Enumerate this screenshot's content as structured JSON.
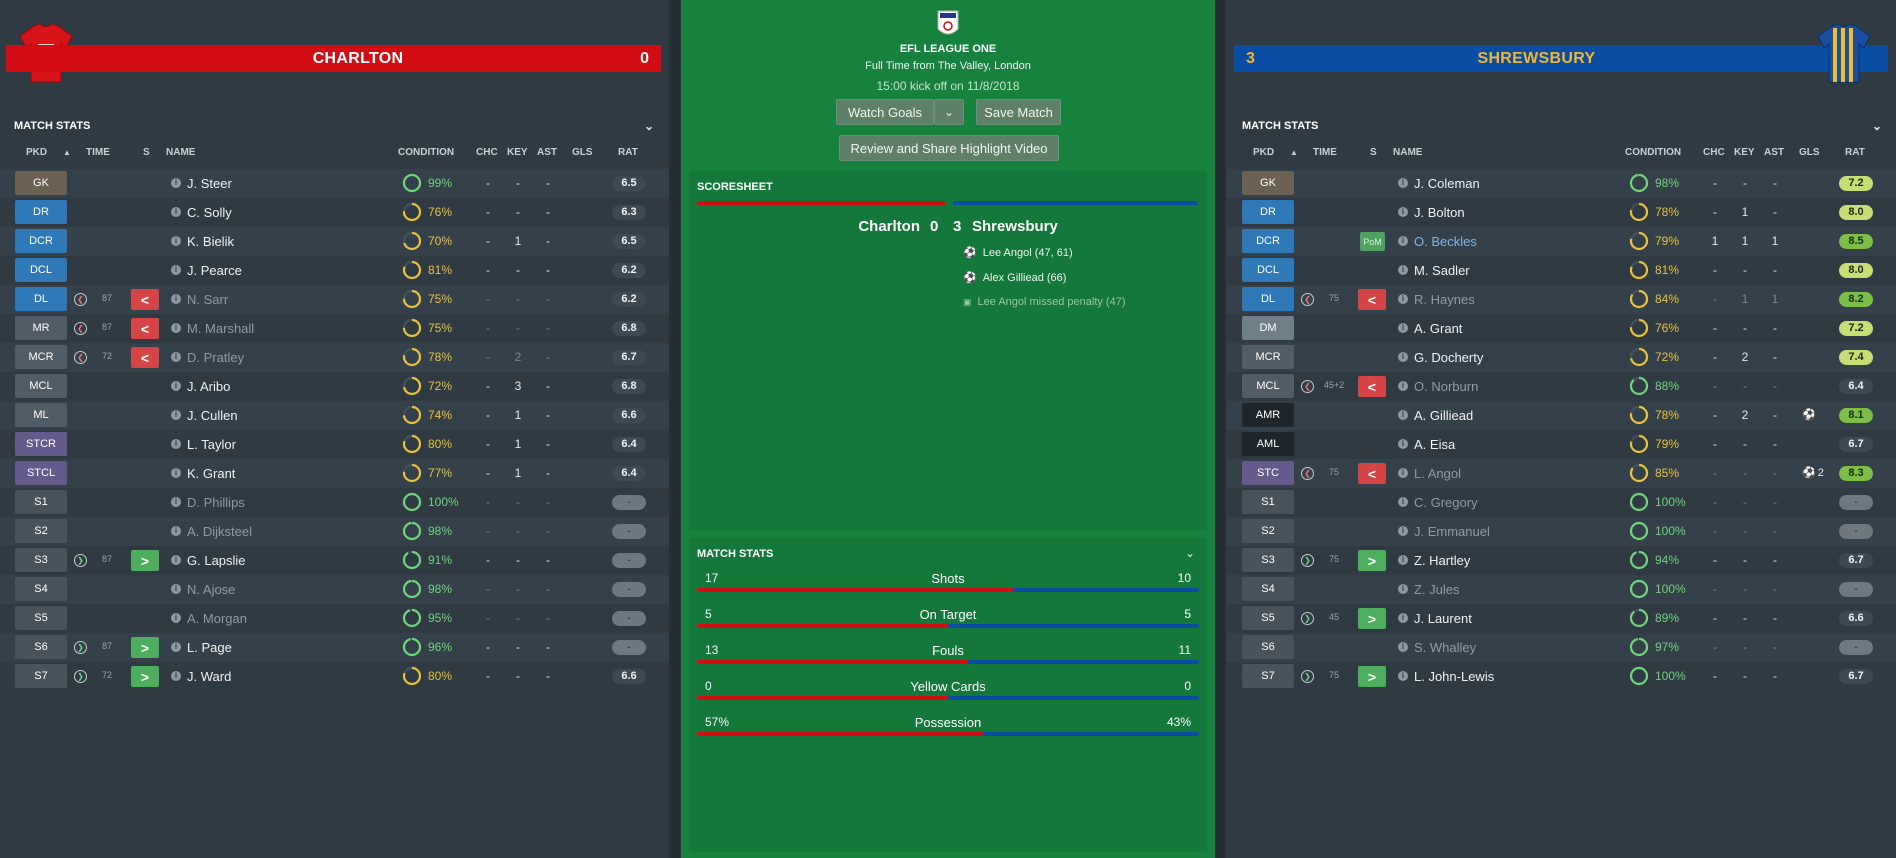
{
  "center": {
    "league": "EFL LEAGUE ONE",
    "venue": "Full Time from The Valley, London",
    "kickoff": "15:00 kick off on 11/8/2018",
    "watch_goals": "Watch Goals",
    "save_match": "Save Match",
    "review": "Review and Share Highlight Video",
    "scoresheet_title": "SCORESHEET",
    "home_name": "Charlton",
    "home_score": "0",
    "away_score": "3",
    "away_name": "Shrewsbury",
    "events": [
      {
        "text": "Lee Angol (47, 61)",
        "icon": "goal-ball-icon"
      },
      {
        "text": "Alex Gilliead (66)",
        "icon": "goal-ball-icon"
      },
      {
        "text": "Lee Angol missed penalty (47)",
        "icon": "missed-penalty-icon"
      }
    ],
    "match_stats_title": "MATCH STATS",
    "stats": [
      {
        "label": "Shots",
        "home": "17",
        "away": "10",
        "home_share": 0.63
      },
      {
        "label": "On Target",
        "home": "5",
        "away": "5",
        "home_share": 0.5
      },
      {
        "label": "Fouls",
        "home": "13",
        "away": "11",
        "home_share": 0.54
      },
      {
        "label": "Yellow Cards",
        "home": "0",
        "away": "0",
        "home_share": 0.5
      },
      {
        "label": "Possession",
        "home": "57%",
        "away": "43%",
        "home_share": 0.57
      }
    ]
  },
  "home": {
    "name": "CHARLTON",
    "score": "0",
    "color": "#d40d14",
    "stats_title": "MATCH STATS",
    "columns": {
      "pkd": "PKD",
      "time": "TIME",
      "s": "S",
      "name": "NAME",
      "condition": "CONDITION",
      "chc": "CHC",
      "key": "KEY",
      "ast": "AST",
      "gls": "GLS",
      "rat": "RAT"
    },
    "players": [
      {
        "pos": "GK",
        "pclass": "gk",
        "name": "J. Steer",
        "cond": "99%",
        "cc": "green",
        "chc": "-",
        "key": "-",
        "ast": "-",
        "rat": "6.5",
        "rc": "plain"
      },
      {
        "pos": "DR",
        "pclass": "def",
        "name": "C. Solly",
        "cond": "76%",
        "cc": "yellow",
        "chc": "-",
        "key": "-",
        "ast": "-",
        "rat": "6.3",
        "rc": "plain"
      },
      {
        "pos": "DCR",
        "pclass": "def",
        "name": "K. Bielik",
        "cond": "70%",
        "cc": "yellow",
        "chc": "-",
        "key": "1",
        "ast": "-",
        "rat": "6.5",
        "rc": "plain"
      },
      {
        "pos": "DCL",
        "pclass": "def",
        "name": "J. Pearce",
        "cond": "81%",
        "cc": "yellow",
        "chc": "-",
        "key": "-",
        "ast": "-",
        "rat": "6.2",
        "rc": "plain"
      },
      {
        "pos": "DL",
        "pclass": "def",
        "sub": "off",
        "time": "87",
        "name": "N. Sarr",
        "dim": true,
        "cond": "75%",
        "cc": "yellow",
        "chc": "-",
        "key": "-",
        "ast": "-",
        "rat": "6.2",
        "rc": "plain"
      },
      {
        "pos": "MR",
        "pclass": "mid",
        "sub": "off",
        "time": "87",
        "name": "M. Marshall",
        "dim": true,
        "cond": "75%",
        "cc": "yellow",
        "chc": "-",
        "key": "-",
        "ast": "-",
        "rat": "6.8",
        "rc": "plain"
      },
      {
        "pos": "MCR",
        "pclass": "mid",
        "sub": "off",
        "time": "72",
        "name": "D. Pratley",
        "dim": true,
        "cond": "78%",
        "cc": "yellow",
        "chc": "-",
        "key": "2",
        "ast": "-",
        "rat": "6.7",
        "rc": "plain"
      },
      {
        "pos": "MCL",
        "pclass": "mid",
        "name": "J. Aribo",
        "cond": "72%",
        "cc": "yellow",
        "chc": "-",
        "key": "3",
        "ast": "-",
        "rat": "6.8",
        "rc": "plain"
      },
      {
        "pos": "ML",
        "pclass": "mid",
        "name": "J. Cullen",
        "cond": "74%",
        "cc": "yellow",
        "chc": "-",
        "key": "1",
        "ast": "-",
        "rat": "6.6",
        "rc": "plain"
      },
      {
        "pos": "STCR",
        "pclass": "att",
        "name": "L. Taylor",
        "cond": "80%",
        "cc": "yellow",
        "chc": "-",
        "key": "1",
        "ast": "-",
        "rat": "6.4",
        "rc": "plain"
      },
      {
        "pos": "STCL",
        "pclass": "att",
        "name": "K. Grant",
        "cond": "77%",
        "cc": "yellow",
        "chc": "-",
        "key": "1",
        "ast": "-",
        "rat": "6.4",
        "rc": "plain"
      },
      {
        "pos": "S1",
        "pclass": "sub",
        "name": "D. Phillips",
        "dim": true,
        "cond": "100%",
        "cc": "green",
        "chc": "-",
        "key": "-",
        "ast": "-",
        "rat": "-",
        "rc": "grey"
      },
      {
        "pos": "S2",
        "pclass": "sub",
        "name": "A. Dijksteel",
        "dim": true,
        "cond": "98%",
        "cc": "green",
        "chc": "-",
        "key": "-",
        "ast": "-",
        "rat": "-",
        "rc": "grey"
      },
      {
        "pos": "S3",
        "pclass": "sub",
        "sub": "on",
        "time": "87",
        "name": "G. Lapslie",
        "cond": "91%",
        "cc": "green",
        "chc": "-",
        "key": "-",
        "ast": "-",
        "rat": "-",
        "rc": "grey"
      },
      {
        "pos": "S4",
        "pclass": "sub",
        "name": "N. Ajose",
        "dim": true,
        "cond": "98%",
        "cc": "green",
        "chc": "-",
        "key": "-",
        "ast": "-",
        "rat": "-",
        "rc": "grey"
      },
      {
        "pos": "S5",
        "pclass": "sub",
        "name": "A. Morgan",
        "dim": true,
        "cond": "95%",
        "cc": "green",
        "chc": "-",
        "key": "-",
        "ast": "-",
        "rat": "-",
        "rc": "grey"
      },
      {
        "pos": "S6",
        "pclass": "sub",
        "sub": "on",
        "time": "87",
        "name": "L. Page",
        "cond": "96%",
        "cc": "green",
        "chc": "-",
        "key": "-",
        "ast": "-",
        "rat": "-",
        "rc": "grey"
      },
      {
        "pos": "S7",
        "pclass": "sub",
        "sub": "on",
        "time": "72",
        "name": "J. Ward",
        "cond": "80%",
        "cc": "yellow",
        "chc": "-",
        "key": "-",
        "ast": "-",
        "rat": "6.6",
        "rc": "plain"
      }
    ]
  },
  "away": {
    "name": "SHREWSBURY",
    "score": "3",
    "color": "#0a4da5",
    "stats_title": "MATCH STATS",
    "columns": {
      "pkd": "PKD",
      "time": "TIME",
      "s": "S",
      "name": "NAME",
      "condition": "CONDITION",
      "chc": "CHC",
      "key": "KEY",
      "ast": "AST",
      "gls": "GLS",
      "rat": "RAT"
    },
    "players": [
      {
        "pos": "GK",
        "pclass": "gk",
        "name": "J. Coleman",
        "cond": "98%",
        "cc": "green",
        "chc": "-",
        "key": "-",
        "ast": "-",
        "rat": "7.2",
        "rc": "ok"
      },
      {
        "pos": "DR",
        "pclass": "def",
        "name": "J. Bolton",
        "cond": "78%",
        "cc": "yellow",
        "chc": "-",
        "key": "1",
        "ast": "-",
        "rat": "8.0",
        "rc": "ok"
      },
      {
        "pos": "DCR",
        "pclass": "def",
        "pom": "PoM",
        "name": "O. Beckles",
        "blue": true,
        "cond": "79%",
        "cc": "yellow",
        "chc": "1",
        "key": "1",
        "ast": "1",
        "rat": "8.5",
        "rc": "good"
      },
      {
        "pos": "DCL",
        "pclass": "def",
        "name": "M. Sadler",
        "cond": "81%",
        "cc": "yellow",
        "chc": "-",
        "key": "-",
        "ast": "-",
        "rat": "8.0",
        "rc": "ok"
      },
      {
        "pos": "DL",
        "pclass": "def",
        "sub": "off",
        "time": "75",
        "name": "R. Haynes",
        "dim": true,
        "cond": "84%",
        "cc": "yellow",
        "chc": "-",
        "key": "1",
        "ast": "1",
        "rat": "8.2",
        "rc": "good"
      },
      {
        "pos": "DM",
        "pclass": "dm",
        "name": "A. Grant",
        "cond": "76%",
        "cc": "yellow",
        "chc": "-",
        "key": "-",
        "ast": "-",
        "rat": "7.2",
        "rc": "ok"
      },
      {
        "pos": "MCR",
        "pclass": "mid",
        "name": "G. Docherty",
        "cond": "72%",
        "cc": "yellow",
        "chc": "-",
        "key": "2",
        "ast": "-",
        "rat": "7.4",
        "rc": "ok"
      },
      {
        "pos": "MCL",
        "pclass": "mid",
        "sub": "off",
        "time": "45+2",
        "name": "O. Norburn",
        "dim": true,
        "cond": "88%",
        "cc": "green",
        "chc": "-",
        "key": "-",
        "ast": "-",
        "rat": "6.4",
        "rc": "plain"
      },
      {
        "pos": "AMR",
        "pclass": "amr",
        "name": "A. Gilliead",
        "cond": "78%",
        "cc": "yellow",
        "chc": "-",
        "key": "2",
        "ast": "-",
        "gls": "",
        "goal_icon": true,
        "rat": "8.1",
        "rc": "good"
      },
      {
        "pos": "AML",
        "pclass": "amr",
        "name": "A. Eisa",
        "cond": "79%",
        "cc": "yellow",
        "chc": "-",
        "key": "-",
        "ast": "-",
        "rat": "6.7",
        "rc": "plain"
      },
      {
        "pos": "STC",
        "pclass": "att",
        "sub": "off",
        "time": "75",
        "name": "L. Angol",
        "dim": true,
        "cond": "85%",
        "cc": "yellow",
        "chc": "-",
        "key": "-",
        "ast": "-",
        "gls": "2",
        "goal_icon": true,
        "rat": "8.3",
        "rc": "good"
      },
      {
        "pos": "S1",
        "pclass": "sub",
        "name": "C. Gregory",
        "dim": true,
        "cond": "100%",
        "cc": "green",
        "chc": "-",
        "key": "-",
        "ast": "-",
        "rat": "-",
        "rc": "grey"
      },
      {
        "pos": "S2",
        "pclass": "sub",
        "name": "J. Emmanuel",
        "dim": true,
        "cond": "100%",
        "cc": "green",
        "chc": "-",
        "key": "-",
        "ast": "-",
        "rat": "-",
        "rc": "grey"
      },
      {
        "pos": "S3",
        "pclass": "sub",
        "sub": "on",
        "time": "75",
        "name": "Z. Hartley",
        "cond": "94%",
        "cc": "green",
        "chc": "-",
        "key": "-",
        "ast": "-",
        "rat": "6.7",
        "rc": "plain"
      },
      {
        "pos": "S4",
        "pclass": "sub",
        "name": "Z. Jules",
        "dim": true,
        "cond": "100%",
        "cc": "green",
        "chc": "-",
        "key": "-",
        "ast": "-",
        "rat": "-",
        "rc": "grey"
      },
      {
        "pos": "S5",
        "pclass": "sub",
        "sub": "on",
        "time": "45",
        "name": "J. Laurent",
        "cond": "89%",
        "cc": "green",
        "chc": "-",
        "key": "-",
        "ast": "-",
        "rat": "6.6",
        "rc": "plain"
      },
      {
        "pos": "S6",
        "pclass": "sub",
        "name": "S. Whalley",
        "dim": true,
        "cond": "97%",
        "cc": "green",
        "chc": "-",
        "key": "-",
        "ast": "-",
        "rat": "-",
        "rc": "grey"
      },
      {
        "pos": "S7",
        "pclass": "sub",
        "sub": "on",
        "time": "75",
        "name": "L. John-Lewis",
        "cond": "100%",
        "cc": "green",
        "chc": "-",
        "key": "-",
        "ast": "-",
        "rat": "6.7",
        "rc": "plain"
      }
    ]
  }
}
